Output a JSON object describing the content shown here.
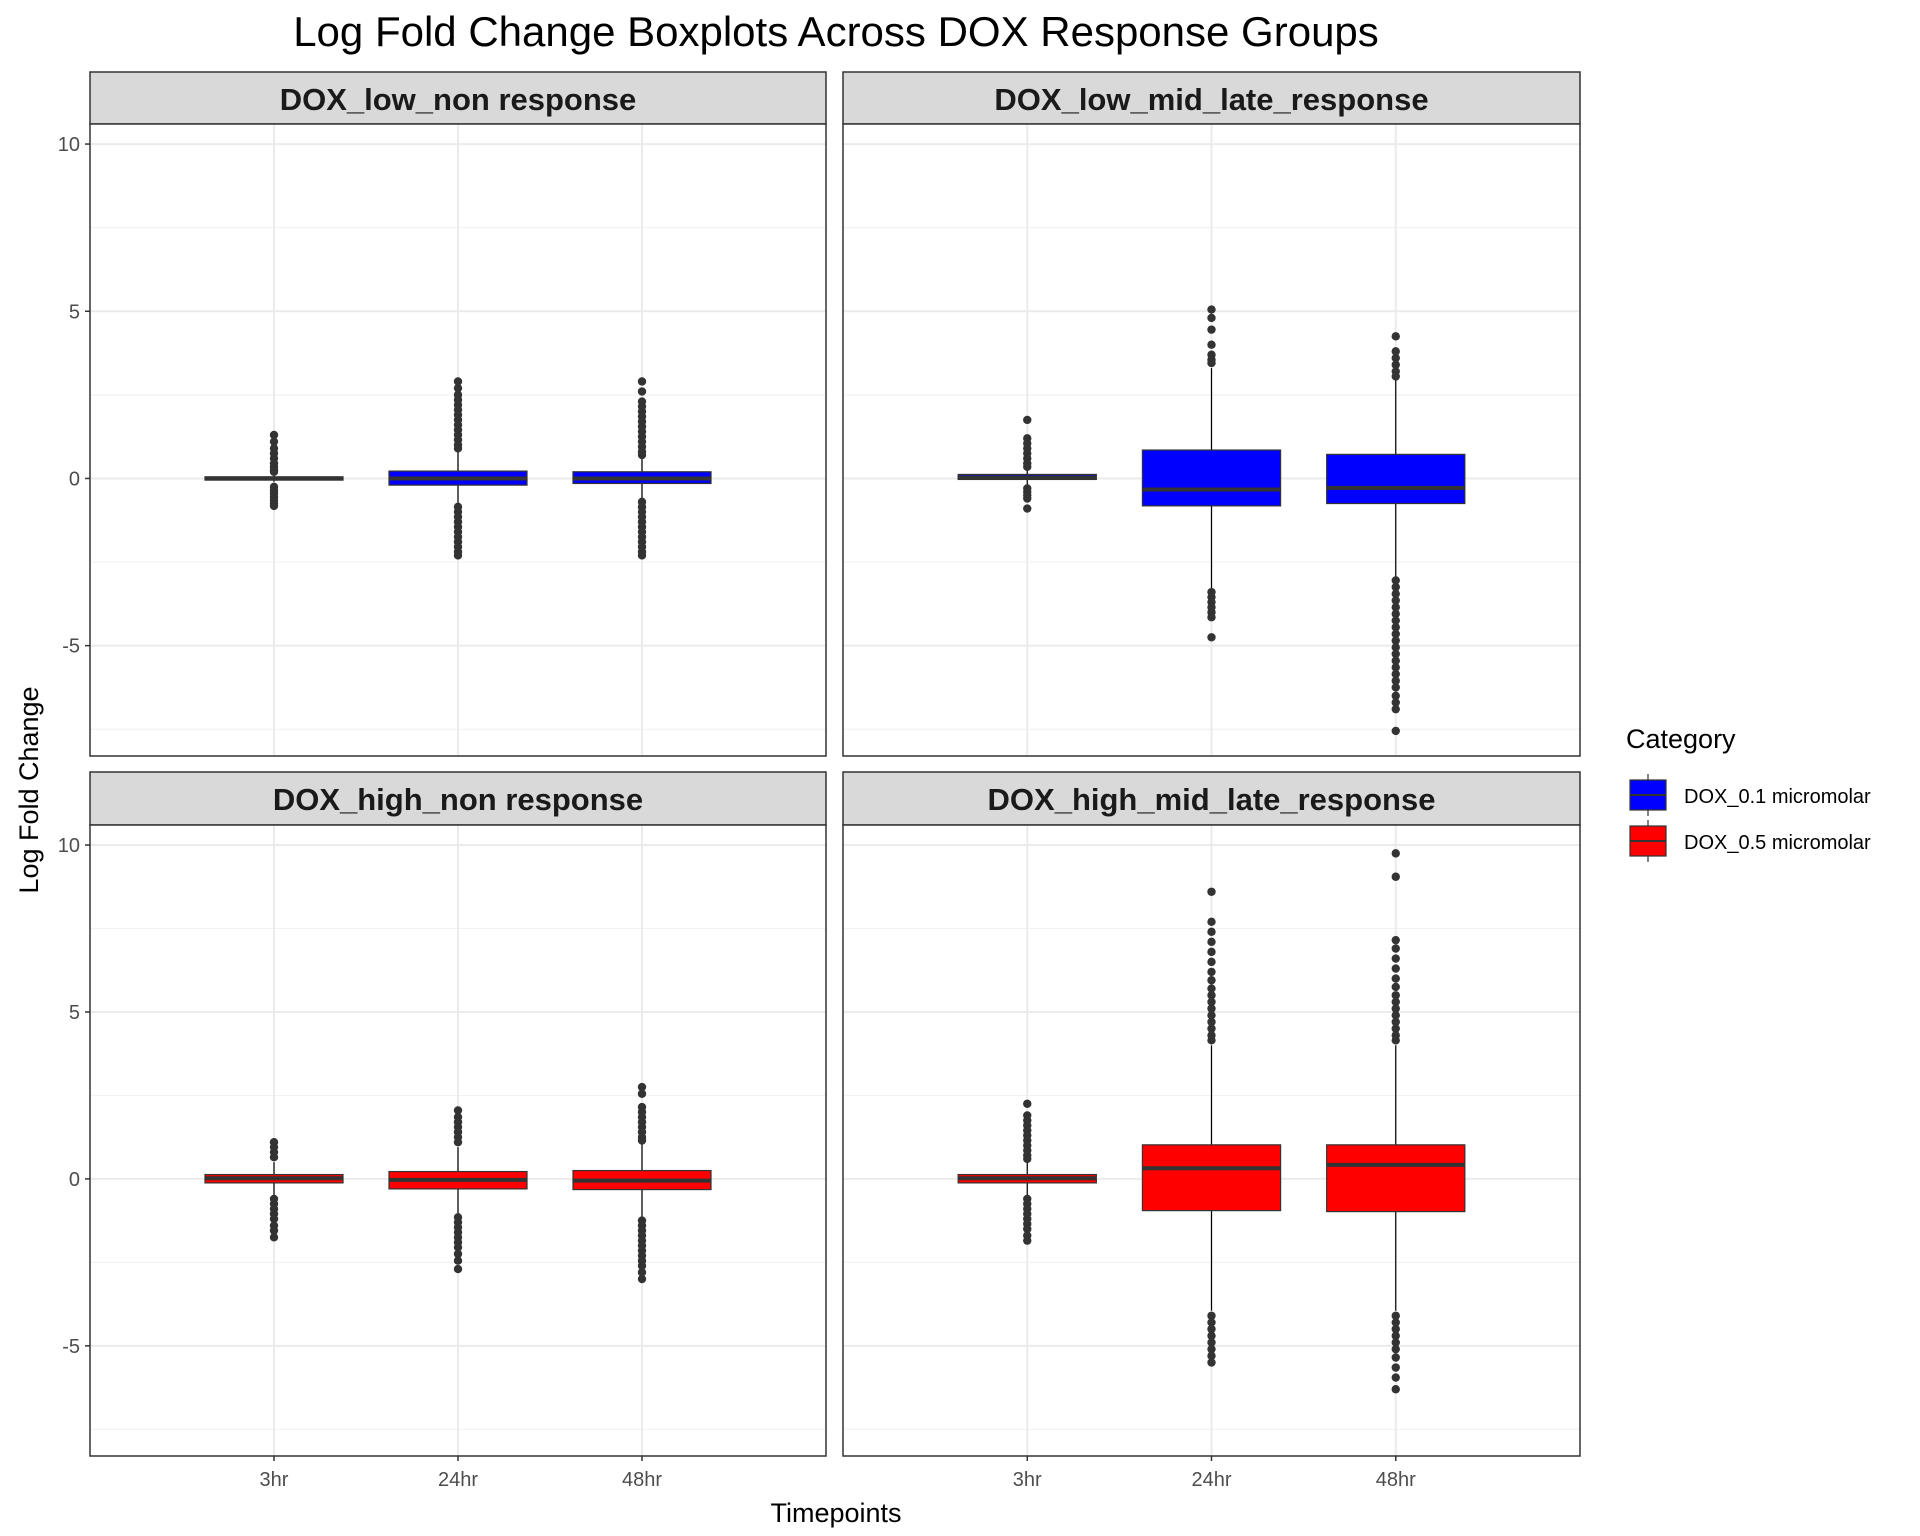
{
  "chart_data": {
    "type": "boxplot",
    "title": "Log Fold Change Boxplots Across DOX Response Groups",
    "xlabel": "Timepoints",
    "ylabel": "Log Fold Change",
    "ylim": [
      -8.3,
      10.6
    ],
    "y_ticks": [
      -5,
      0,
      5,
      10
    ],
    "categories": [
      "3hr",
      "24hr",
      "48hr"
    ],
    "grid": true,
    "legend": {
      "title": "Category",
      "placement": "right",
      "entries": [
        {
          "label": "DOX_0.1 micromolar",
          "color": "#0000FF"
        },
        {
          "label": "DOX_0.5 micromolar",
          "color": "#FF0000"
        }
      ]
    },
    "panels": [
      {
        "name": "DOX_low_non response",
        "color": "#0000FF",
        "boxes": [
          {
            "x": "3hr",
            "q1": -0.05,
            "median": 0.0,
            "q3": 0.05,
            "whisker_low": -0.1,
            "whisker_high": 0.1,
            "outliers": [
              1.3,
              1.1,
              0.9,
              0.75,
              0.6,
              0.45,
              0.35,
              0.25,
              0.2,
              -0.25,
              -0.35,
              -0.45,
              -0.55,
              -0.65,
              -0.75,
              -0.82
            ]
          },
          {
            "x": "24hr",
            "q1": -0.2,
            "median": 0.0,
            "q3": 0.22,
            "whisker_low": -0.75,
            "whisker_high": 0.82,
            "outliers": [
              2.9,
              2.7,
              2.5,
              2.35,
              2.2,
              2.05,
              1.9,
              1.75,
              1.6,
              1.45,
              1.3,
              1.15,
              1.0,
              0.9,
              -0.85,
              -1.0,
              -1.15,
              -1.3,
              -1.45,
              -1.6,
              -1.75,
              -1.9,
              -2.05,
              -2.2,
              -2.3
            ]
          },
          {
            "x": "48hr",
            "q1": -0.15,
            "median": 0.0,
            "q3": 0.2,
            "whisker_low": -0.6,
            "whisker_high": 0.65,
            "outliers": [
              2.9,
              2.6,
              2.3,
              2.15,
              2.0,
              1.85,
              1.7,
              1.55,
              1.4,
              1.25,
              1.1,
              0.95,
              0.8,
              0.7,
              -0.7,
              -0.85,
              -1.0,
              -1.15,
              -1.3,
              -1.45,
              -1.6,
              -1.75,
              -1.9,
              -2.05,
              -2.2,
              -2.3
            ]
          }
        ]
      },
      {
        "name": "DOX_low_mid_late_response",
        "color": "#0000FF",
        "boxes": [
          {
            "x": "3hr",
            "q1": -0.03,
            "median": 0.03,
            "q3": 0.12,
            "whisker_low": -0.2,
            "whisker_high": 0.3,
            "outliers": [
              1.75,
              1.2,
              1.05,
              0.9,
              0.75,
              0.6,
              0.45,
              0.35,
              -0.3,
              -0.4,
              -0.5,
              -0.6,
              -0.9
            ]
          },
          {
            "x": "24hr",
            "q1": -0.82,
            "median": -0.33,
            "q3": 0.85,
            "whisker_low": -3.3,
            "whisker_high": 3.3,
            "outliers": [
              5.05,
              4.8,
              4.45,
              4.0,
              3.7,
              3.55,
              3.45,
              -3.4,
              -3.55,
              -3.7,
              -3.85,
              -4.0,
              -4.15,
              -4.75
            ]
          },
          {
            "x": "48hr",
            "q1": -0.75,
            "median": -0.28,
            "q3": 0.72,
            "whisker_low": -2.95,
            "whisker_high": 2.95,
            "outliers": [
              4.25,
              3.8,
              3.6,
              3.4,
              3.2,
              3.05,
              -3.05,
              -3.25,
              -3.45,
              -3.65,
              -3.85,
              -4.05,
              -4.25,
              -4.45,
              -4.65,
              -4.85,
              -5.05,
              -5.25,
              -5.45,
              -5.65,
              -5.85,
              -6.05,
              -6.25,
              -6.5,
              -6.7,
              -6.9,
              -7.55
            ]
          }
        ]
      },
      {
        "name": "DOX_high_non response",
        "color": "#FF0000",
        "boxes": [
          {
            "x": "3hr",
            "q1": -0.12,
            "median": 0.02,
            "q3": 0.13,
            "whisker_low": -0.5,
            "whisker_high": 0.5,
            "outliers": [
              1.1,
              0.95,
              0.8,
              0.65,
              -0.6,
              -0.75,
              -0.9,
              -1.05,
              -1.2,
              -1.4,
              -1.55,
              -1.75
            ]
          },
          {
            "x": "24hr",
            "q1": -0.3,
            "median": -0.03,
            "q3": 0.22,
            "whisker_low": -1.05,
            "whisker_high": 0.95,
            "outliers": [
              2.05,
              1.85,
              1.7,
              1.55,
              1.4,
              1.25,
              1.1,
              -1.15,
              -1.3,
              -1.45,
              -1.6,
              -1.75,
              -1.9,
              -2.05,
              -2.25,
              -2.45,
              -2.7
            ]
          },
          {
            "x": "48hr",
            "q1": -0.32,
            "median": -0.05,
            "q3": 0.25,
            "whisker_low": -1.15,
            "whisker_high": 1.05,
            "outliers": [
              2.75,
              2.55,
              2.15,
              2.0,
              1.85,
              1.7,
              1.55,
              1.4,
              1.25,
              1.15,
              -1.25,
              -1.4,
              -1.55,
              -1.7,
              -1.85,
              -2.0,
              -2.15,
              -2.3,
              -2.45,
              -2.6,
              -2.8,
              -3.0
            ]
          }
        ]
      },
      {
        "name": "DOX_high_mid_late_response",
        "color": "#FF0000",
        "boxes": [
          {
            "x": "3hr",
            "q1": -0.12,
            "median": 0.02,
            "q3": 0.13,
            "whisker_low": -0.5,
            "whisker_high": 0.5,
            "outliers": [
              2.25,
              1.9,
              1.75,
              1.6,
              1.45,
              1.3,
              1.15,
              1.0,
              0.85,
              0.7,
              0.6,
              -0.6,
              -0.75,
              -0.9,
              -1.05,
              -1.2,
              -1.35,
              -1.5,
              -1.7,
              -1.85
            ]
          },
          {
            "x": "24hr",
            "q1": -0.95,
            "median": 0.32,
            "q3": 1.02,
            "whisker_low": -3.95,
            "whisker_high": 4.0,
            "outliers": [
              8.6,
              7.7,
              7.4,
              7.1,
              6.8,
              6.5,
              6.2,
              5.95,
              5.7,
              5.5,
              5.3,
              5.1,
              4.9,
              4.7,
              4.5,
              4.3,
              4.15,
              -4.1,
              -4.3,
              -4.5,
              -4.7,
              -4.9,
              -5.1,
              -5.3,
              -5.5
            ]
          },
          {
            "x": "48hr",
            "q1": -0.98,
            "median": 0.42,
            "q3": 1.02,
            "whisker_low": -3.95,
            "whisker_high": 4.0,
            "outliers": [
              9.75,
              9.05,
              7.15,
              6.9,
              6.6,
              6.3,
              6.0,
              5.75,
              5.5,
              5.3,
              5.1,
              4.9,
              4.7,
              4.5,
              4.3,
              4.15,
              -4.1,
              -4.3,
              -4.5,
              -4.7,
              -4.9,
              -5.1,
              -5.35,
              -5.65,
              -5.95,
              -6.3
            ]
          }
        ]
      }
    ]
  }
}
